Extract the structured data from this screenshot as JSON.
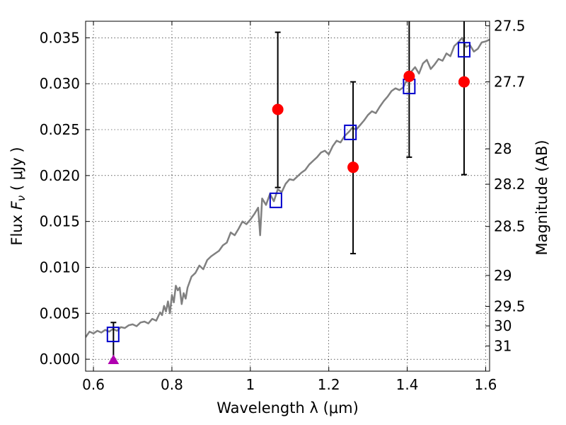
{
  "chart_data": {
    "type": "scatter",
    "xlabel": "Wavelength  λ (μm)",
    "ylabel": "Flux  F_ν  ( μJy )",
    "ylabel_right": "Magnitude (AB)",
    "xlim": [
      0.58,
      1.61
    ],
    "ylim": [
      -0.0013,
      0.0368
    ],
    "grid": true,
    "x_ticks": [
      {
        "value": 0.6,
        "label": "0.6"
      },
      {
        "value": 0.8,
        "label": "0.8"
      },
      {
        "value": 1.0,
        "label": "1"
      },
      {
        "value": 1.2,
        "label": "1.2"
      },
      {
        "value": 1.4,
        "label": "1.4"
      },
      {
        "value": 1.6,
        "label": "1.6"
      }
    ],
    "y_ticks": [
      {
        "value": 0.0,
        "label": "0.000"
      },
      {
        "value": 0.005,
        "label": "0.005"
      },
      {
        "value": 0.01,
        "label": "0.010"
      },
      {
        "value": 0.015,
        "label": "0.015"
      },
      {
        "value": 0.02,
        "label": "0.020"
      },
      {
        "value": 0.025,
        "label": "0.025"
      },
      {
        "value": 0.03,
        "label": "0.030"
      },
      {
        "value": 0.035,
        "label": "0.035"
      }
    ],
    "mag_ticks": [
      {
        "value": 27.5,
        "label": "27.5"
      },
      {
        "value": 27.7,
        "label": "27.7"
      },
      {
        "value": 28.0,
        "label": "28"
      },
      {
        "value": 28.2,
        "label": "28.2"
      },
      {
        "value": 28.5,
        "label": "28.5"
      },
      {
        "value": 29.0,
        "label": "29"
      },
      {
        "value": 29.5,
        "label": "29.5"
      },
      {
        "value": 30.0,
        "label": "30"
      },
      {
        "value": 31.0,
        "label": "31"
      }
    ],
    "series": [
      {
        "kind": "line",
        "color": "#808080",
        "x": [
          0.58,
          0.59,
          0.6,
          0.61,
          0.62,
          0.63,
          0.64,
          0.65,
          0.66,
          0.67,
          0.68,
          0.69,
          0.7,
          0.71,
          0.72,
          0.73,
          0.74,
          0.75,
          0.76,
          0.77,
          0.775,
          0.78,
          0.785,
          0.79,
          0.795,
          0.8,
          0.805,
          0.81,
          0.815,
          0.82,
          0.825,
          0.83,
          0.835,
          0.84,
          0.85,
          0.86,
          0.87,
          0.88,
          0.89,
          0.9,
          0.91,
          0.92,
          0.93,
          0.94,
          0.95,
          0.96,
          0.97,
          0.98,
          0.99,
          1.0,
          1.01,
          1.02,
          1.025,
          1.03,
          1.04,
          1.05,
          1.06,
          1.07,
          1.08,
          1.09,
          1.1,
          1.11,
          1.12,
          1.13,
          1.14,
          1.15,
          1.16,
          1.17,
          1.18,
          1.19,
          1.2,
          1.21,
          1.22,
          1.23,
          1.24,
          1.25,
          1.26,
          1.27,
          1.28,
          1.29,
          1.3,
          1.31,
          1.32,
          1.33,
          1.34,
          1.35,
          1.36,
          1.37,
          1.38,
          1.39,
          1.4,
          1.41,
          1.42,
          1.43,
          1.44,
          1.45,
          1.46,
          1.47,
          1.48,
          1.49,
          1.5,
          1.51,
          1.52,
          1.53,
          1.54,
          1.55,
          1.56,
          1.57,
          1.58,
          1.59,
          1.6,
          1.61
        ],
        "y": [
          0.0024,
          0.003,
          0.0028,
          0.0031,
          0.0029,
          0.0032,
          0.003,
          0.0033,
          0.0031,
          0.0035,
          0.0034,
          0.0037,
          0.0038,
          0.0036,
          0.004,
          0.0041,
          0.0039,
          0.0044,
          0.0042,
          0.0051,
          0.0048,
          0.0058,
          0.0052,
          0.0063,
          0.005,
          0.007,
          0.0062,
          0.008,
          0.0075,
          0.0078,
          0.006,
          0.0072,
          0.0066,
          0.0078,
          0.009,
          0.0094,
          0.0102,
          0.0098,
          0.0108,
          0.0112,
          0.0115,
          0.0118,
          0.0124,
          0.0127,
          0.0138,
          0.0135,
          0.0142,
          0.015,
          0.0147,
          0.0152,
          0.0158,
          0.0165,
          0.0135,
          0.0175,
          0.0168,
          0.018,
          0.0172,
          0.0185,
          0.0182,
          0.0191,
          0.0196,
          0.0195,
          0.0199,
          0.0203,
          0.0206,
          0.0212,
          0.0216,
          0.022,
          0.0225,
          0.0227,
          0.0223,
          0.0232,
          0.0238,
          0.0236,
          0.0243,
          0.0247,
          0.0252,
          0.025,
          0.0255,
          0.026,
          0.0266,
          0.027,
          0.0268,
          0.0275,
          0.0281,
          0.0286,
          0.0292,
          0.0295,
          0.0293,
          0.0296,
          0.0305,
          0.0313,
          0.0318,
          0.0311,
          0.0322,
          0.0326,
          0.0316,
          0.0321,
          0.0327,
          0.0325,
          0.0333,
          0.033,
          0.0341,
          0.0345,
          0.035,
          0.034,
          0.0342,
          0.0335,
          0.0338,
          0.0345,
          0.0346,
          0.0348
        ]
      },
      {
        "kind": "square",
        "color": "#0000cc",
        "x": [
          0.65,
          1.065,
          1.255,
          1.405,
          1.545
        ],
        "y": [
          0.0027,
          0.0173,
          0.0247,
          0.0297,
          0.0337
        ]
      },
      {
        "kind": "dot",
        "color": "#ff0000",
        "x": [
          1.07,
          1.262,
          1.405,
          1.545
        ],
        "y": [
          0.0272,
          0.0209,
          0.0308,
          0.0302
        ],
        "yerr_low": [
          0.0187,
          0.0115,
          0.022,
          0.0201
        ],
        "yerr_high": [
          0.0356,
          0.0302,
          0.038,
          0.038
        ]
      },
      {
        "kind": "triangle",
        "color": "#b000b0",
        "x": [
          0.651
        ],
        "y": [
          -0.0001
        ],
        "yerr_low": [
          0.0
        ],
        "yerr_high": [
          0.004
        ]
      }
    ]
  }
}
